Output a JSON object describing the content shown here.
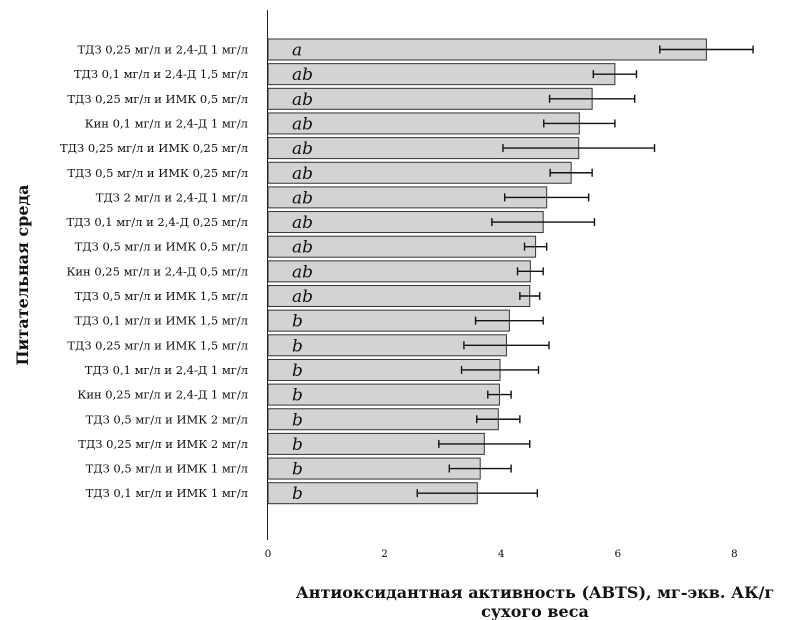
{
  "chart_data": {
    "type": "bar",
    "orientation": "horizontal",
    "ylabel": "Питательная среда",
    "xlabel_lines": [
      "Антиоксидантная активность (ABTS), мг-экв. АК/г",
      "сухого веса"
    ],
    "xlim": [
      0,
      9.2
    ],
    "xticks": [
      0,
      2,
      4,
      6,
      8
    ],
    "xtick_labels": [
      "0",
      "2",
      "4",
      "6",
      "8"
    ],
    "categories": [
      "ТДЗ 0,25 мг/л и 2,4-Д 1 мг/л",
      "ТДЗ 0,1 мг/л и 2,4-Д 1,5 мг/л",
      "ТДЗ 0,25 мг/л и ИМК 0,5 мг/л",
      "Кин 0,1 мг/л и 2,4-Д 1 мг/л",
      "ТДЗ 0,25 мг/л и ИМК 0,25 мг/л",
      "ТДЗ 0,5 мг/л и ИМК 0,25 мг/л",
      "ТДЗ 2 мг/л и 2,4-Д 1 мг/л",
      "ТДЗ 0,1 мг/л и 2,4-Д 0,25 мг/л",
      "ТДЗ 0,5 мг/л и ИМК 0,5 мг/л",
      "Кин 0,25 мг/л и 2,4-Д 0,5 мг/л",
      "ТДЗ 0,5 мг/л и ИМК 1,5 мг/л",
      "ТДЗ 0,1 мг/л и ИМК 1,5 мг/л",
      "ТДЗ 0,25 мг/л и ИМК 1,5 мг/л",
      "ТДЗ 0,1 мг/л и 2,4-Д 1 мг/л",
      "Кин 0,25 мг/л и 2,4-Д 1 мг/л",
      "ТДЗ 0,5 мг/л и ИМК 2 мг/л",
      "ТДЗ 0,25 мг/л и ИМК 2 мг/л",
      "ТДЗ 0,5 мг/л и ИМК 1 мг/л",
      "ТДЗ 0,1 мг/л и ИМК 1 мг/л"
    ],
    "values": [
      7.52,
      5.95,
      5.56,
      5.34,
      5.33,
      5.2,
      4.78,
      4.72,
      4.59,
      4.5,
      4.49,
      4.14,
      4.09,
      3.98,
      3.97,
      3.95,
      3.71,
      3.64,
      3.59
    ],
    "errors": [
      0.8,
      0.37,
      0.73,
      0.61,
      1.3,
      0.36,
      0.72,
      0.88,
      0.19,
      0.22,
      0.17,
      0.58,
      0.73,
      0.66,
      0.2,
      0.37,
      0.78,
      0.53,
      1.03
    ],
    "significance": [
      "a",
      "ab",
      "ab",
      "ab",
      "ab",
      "ab",
      "ab",
      "ab",
      "ab",
      "ab",
      "ab",
      "b",
      "b",
      "b",
      "b",
      "b",
      "b",
      "b",
      "b"
    ],
    "bar_color": "#d3d3d3",
    "bar_edge_color": "#333333",
    "grid": false,
    "legend": "none"
  }
}
